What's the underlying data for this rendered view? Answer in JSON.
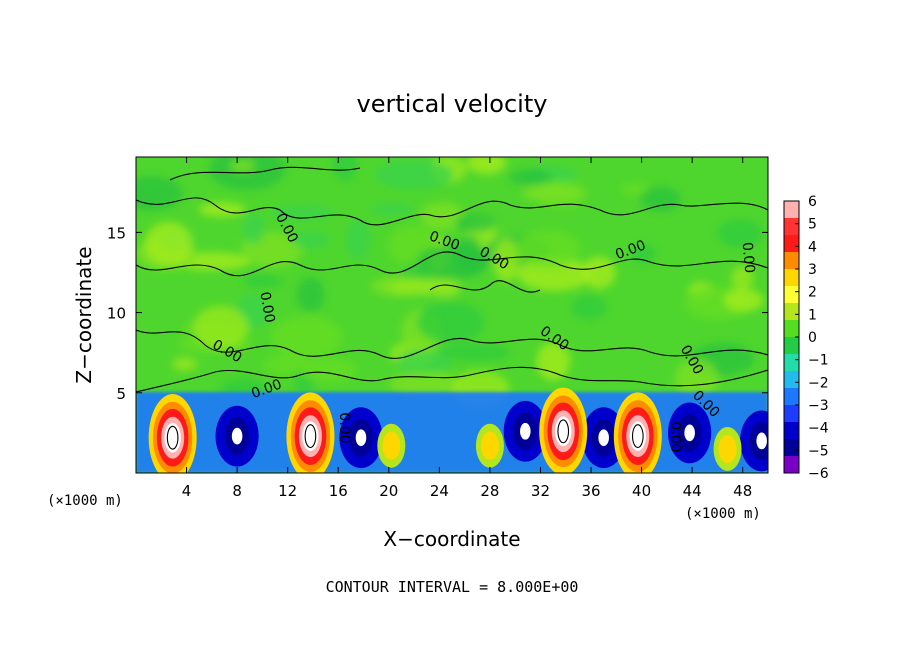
{
  "chart_data": {
    "type": "heatmap",
    "title": "vertical velocity",
    "xlabel": "X−coordinate",
    "ylabel": "Z−coordinate",
    "x_unit_left": "(×1000 m)",
    "x_unit_right": "(×1000 m)",
    "footer": "CONTOUR INTERVAL = 8.000E+00",
    "xlim": [
      0,
      50
    ],
    "ylim": [
      0,
      19.7
    ],
    "x_ticks": [
      4,
      8,
      12,
      16,
      20,
      24,
      28,
      32,
      36,
      40,
      44,
      48
    ],
    "y_ticks": [
      5,
      10,
      15
    ],
    "contour_label": "0.00",
    "colorbar": {
      "range": [
        -6,
        6
      ],
      "ticks": [
        "6",
        "5",
        "4",
        "3",
        "2",
        "1",
        "0",
        "−1",
        "−2",
        "−3",
        "−4",
        "−5",
        "−6"
      ],
      "colors": [
        "#ffb0b0",
        "#ff3333",
        "#ff1a1a",
        "#ff8c00",
        "#ffd700",
        "#ffff33",
        "#b5e61d",
        "#55dd22",
        "#22cc44",
        "#22ddaa",
        "#22bbee",
        "#1e78ff",
        "#1e3cff",
        "#0000cc",
        "#000099",
        "#7a00c8"
      ]
    },
    "updraft_cores": [
      {
        "x": 2.9,
        "z": 2.2,
        "peak": 6
      },
      {
        "x": 13.8,
        "z": 2.3,
        "peak": 6
      },
      {
        "x": 33.8,
        "z": 2.6,
        "peak": 6
      },
      {
        "x": 39.7,
        "z": 2.3,
        "peak": 6
      },
      {
        "x": 20.2,
        "z": 1.7,
        "peak": 2
      },
      {
        "x": 28.0,
        "z": 1.7,
        "peak": 2
      },
      {
        "x": 46.8,
        "z": 1.5,
        "peak": 2
      }
    ],
    "downdraft_cores": [
      {
        "x": 8.0,
        "z": 2.3,
        "peak": -5
      },
      {
        "x": 17.8,
        "z": 2.2,
        "peak": -5
      },
      {
        "x": 30.8,
        "z": 2.6,
        "peak": -5
      },
      {
        "x": 37.0,
        "z": 2.2,
        "peak": -5
      },
      {
        "x": 43.8,
        "z": 2.5,
        "peak": -5
      },
      {
        "x": 49.5,
        "z": 2.0,
        "peak": -5
      }
    ]
  }
}
